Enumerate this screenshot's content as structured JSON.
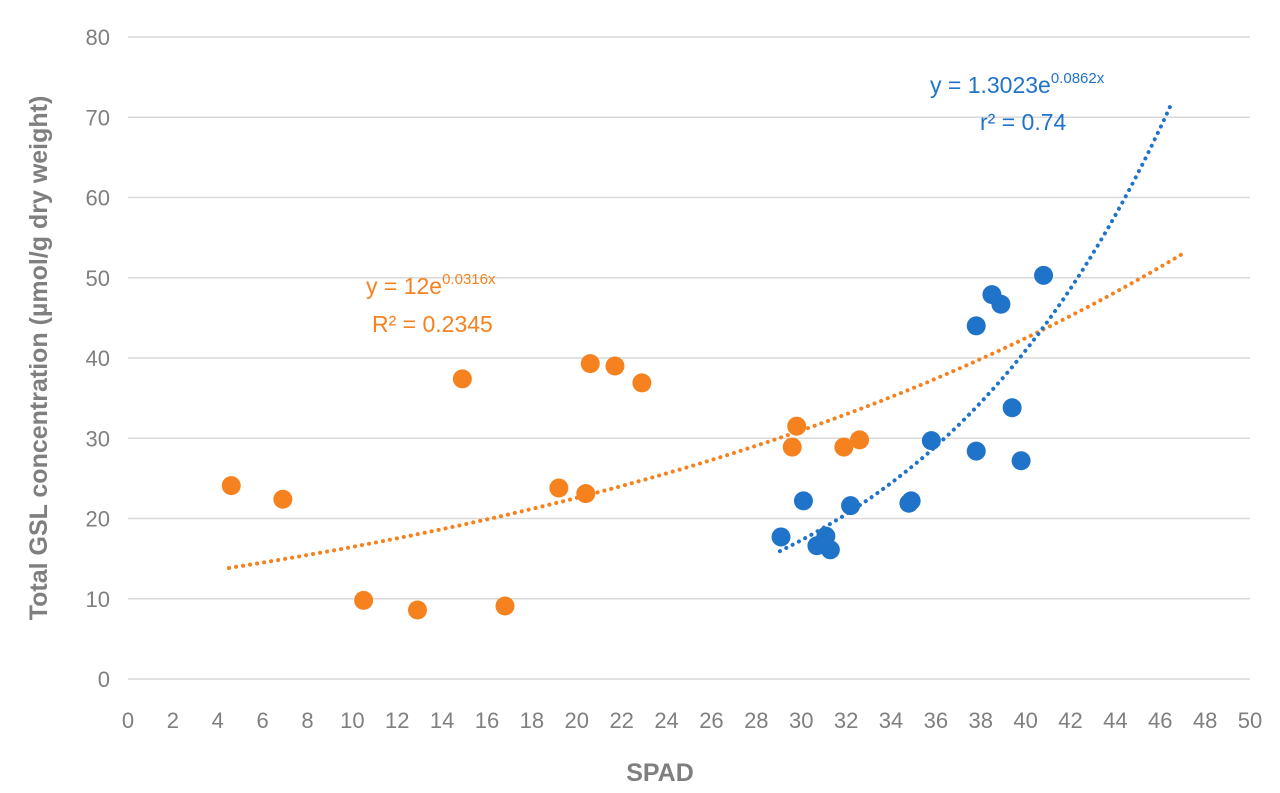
{
  "chart_data": {
    "type": "scatter",
    "xlabel": "SPAD",
    "ylabel": "Total GSL concentration (µmol/g dry weight)",
    "xlim": [
      0,
      50
    ],
    "ylim": [
      0,
      80
    ],
    "xticks": [
      "0",
      "2",
      "4",
      "6",
      "8",
      "10",
      "12",
      "14",
      "16",
      "18",
      "20",
      "22",
      "24",
      "26",
      "28",
      "30",
      "32",
      "34",
      "36",
      "38",
      "40",
      "42",
      "44",
      "46",
      "48",
      "50"
    ],
    "yticks": [
      "0",
      "10",
      "20",
      "30",
      "40",
      "50",
      "60",
      "70",
      "80"
    ],
    "grid": "horizontal",
    "series": [
      {
        "name": "orange",
        "color": "#f5821f",
        "points": [
          [
            4.6,
            24.1
          ],
          [
            6.9,
            22.4
          ],
          [
            10.5,
            9.8
          ],
          [
            12.9,
            8.6
          ],
          [
            14.9,
            37.4
          ],
          [
            16.8,
            9.1
          ],
          [
            19.2,
            23.8
          ],
          [
            20.4,
            23.1
          ],
          [
            20.6,
            39.3
          ],
          [
            21.7,
            39.0
          ],
          [
            22.9,
            36.9
          ],
          [
            29.6,
            28.9
          ],
          [
            29.8,
            31.5
          ],
          [
            31.9,
            28.9
          ],
          [
            32.6,
            29.8
          ]
        ],
        "trendline": {
          "type": "exponential",
          "a": 12,
          "b": 0.0316,
          "x_range": [
            4.5,
            47.0
          ]
        },
        "equation": {
          "prefix": "y = 12e",
          "exponent": "0.0316x",
          "r2": "R² = 0.2345"
        }
      },
      {
        "name": "blue",
        "color": "#1f73c8",
        "points": [
          [
            29.1,
            17.7
          ],
          [
            30.1,
            22.2
          ],
          [
            30.7,
            16.6
          ],
          [
            31.1,
            17.8
          ],
          [
            31.3,
            16.1
          ],
          [
            32.2,
            21.6
          ],
          [
            34.8,
            21.9
          ],
          [
            34.9,
            22.2
          ],
          [
            35.8,
            29.7
          ],
          [
            37.8,
            44.0
          ],
          [
            37.8,
            28.4
          ],
          [
            38.5,
            47.9
          ],
          [
            38.9,
            46.7
          ],
          [
            39.4,
            33.8
          ],
          [
            39.8,
            27.2
          ],
          [
            40.8,
            50.3
          ]
        ],
        "trendline": {
          "type": "exponential",
          "a": 1.3023,
          "b": 0.0862,
          "x_range": [
            29.05,
            46.5
          ]
        },
        "equation": {
          "prefix": "y = 1.3023e",
          "exponent": "0.0862x",
          "r2": "r² = 0.74"
        }
      }
    ]
  }
}
